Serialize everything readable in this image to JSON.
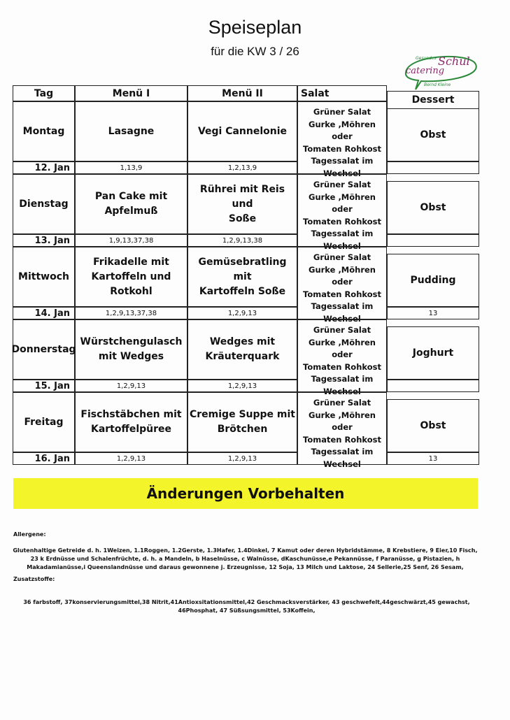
{
  "header": {
    "title": "Speiseplan",
    "subtitle": "für die KW 3 / 26",
    "logo": {
      "top": "Gesundes",
      "main": "Schul",
      "sub": "catering",
      "name": "Bernd Kleine"
    }
  },
  "table": {
    "columns": [
      "Tag",
      "Menü I",
      "Menü II",
      "Salat",
      "Dessert"
    ],
    "rows": [
      {
        "day": "Montag",
        "date": "12. Jan",
        "menu1": [
          "Lasagne"
        ],
        "menu1_allergens": "1,13,9",
        "menu2": [
          "Vegi Cannelonie"
        ],
        "menu2_allergens": "1,2,13,9",
        "salad": [
          "Grüner Salat",
          "Gurke ,Möhren oder",
          "Tomaten Rohkost",
          "Tagessalat im",
          "Wechsel"
        ],
        "dessert": "Obst"
      },
      {
        "day": "Dienstag",
        "date": "13. Jan",
        "menu1": [
          "Pan Cake mit",
          "Apfelmuß"
        ],
        "menu1_allergens": "1,9,13,37,38",
        "menu2": [
          "Rührei mit Reis und",
          "Soße"
        ],
        "menu2_allergens": "1,2,9,13,38",
        "salad": [
          "Grüner Salat",
          "Gurke ,Möhren oder",
          "Tomaten Rohkost",
          "Tagessalat im",
          "Wechsel"
        ],
        "dessert": "Obst"
      },
      {
        "day": "Mittwoch",
        "date": "14. Jan",
        "menu1": [
          "Frikadelle mit",
          "Kartoffeln und",
          "Rotkohl"
        ],
        "menu1_allergens": "1,2,9,13,37,38",
        "menu2": [
          "Gemüsebratling mit",
          "Kartoffeln Soße"
        ],
        "menu2_allergens": "1,2,9,13",
        "salad": [
          "Grüner Salat",
          "Gurke ,Möhren oder",
          "Tomaten Rohkost",
          "Tagessalat im",
          "Wechsel"
        ],
        "dessert": "Pudding",
        "dessert_allergens": "13"
      },
      {
        "day": "Donnerstag",
        "date": "15. Jan",
        "menu1": [
          "Würstchengulasch",
          "mit Wedges"
        ],
        "menu1_allergens": "1,2,9,13",
        "menu2": [
          "Wedges mit",
          "Kräuterquark"
        ],
        "menu2_allergens": "1,2,9,13",
        "salad": [
          "Grüner Salat",
          "Gurke ,Möhren oder",
          "Tomaten Rohkost",
          "Tagessalat im",
          "Wechsel"
        ],
        "dessert": "Joghurt"
      },
      {
        "day": "Freitag",
        "date": "16. Jan",
        "menu1": [
          "Fischstäbchen mit",
          "Kartoffelpüree"
        ],
        "menu1_allergens": "1,2,9,13",
        "menu2": [
          "Cremige Suppe mit",
          "Brötchen"
        ],
        "menu2_allergens": "1,2,9,13",
        "salad": [
          "Grüner Salat",
          "Gurke ,Möhren oder",
          "Tomaten Rohkost",
          "Tagessalat im",
          "Wechsel"
        ],
        "dessert": "Obst",
        "dessert_allergens": "13"
      }
    ]
  },
  "notice": "Änderungen Vorbehalten",
  "footer": {
    "allergens_title": "Allergene:",
    "allergens_text": "Glutenhaltige Getreide d. h. 1Weizen, 1.1Roggen, 1.2Gerste, 1.3Hafer, 1.4Dinkel,  7 Kamut oder deren Hybridstämme, 8 Krebstiere, 9 Eier,10 Fisch, 23 k Erdnüsse und Schalenfrüchte, d. h. a Mandeln, b Haselnüsse, c Walnüsse, dKaschunüsse,e Pekannüsse, f Paranüsse, g Pistazien, h Makadamianüsse,i Queenslandnüsse und daraus gewonnene j. Erzeugnisse, 12 Soja, 13 Milch und Laktose, 24 Sellerie,25 Senf, 26 Sesam,",
    "additives_title": "Zusatzstoffe:",
    "additives_text": "36 farbstoff, 37konservierungsmittel,38 Nitrit,41Antioxsitationsmittel,42 Geschmacksverstärker, 43 geschwefelt,44geschwärzt,45 gewachst, 46Phosphat, 47 Süßsungsmittel, 53Koffein,"
  }
}
